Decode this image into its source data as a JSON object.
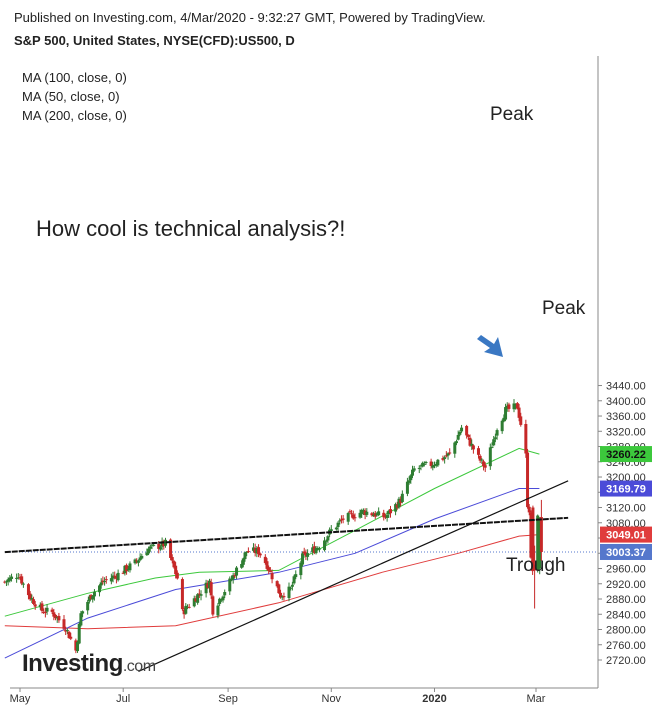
{
  "header": {
    "published": "Published on Investing.com, 4/Mar/2020 - 9:32:27 GMT, Powered by TradingView.",
    "symbol": "S&P 500, United States, NYSE(CFD):US500, D"
  },
  "legend": [
    "MA (100, close, 0)",
    "MA (50, close, 0)",
    "MA (200, close, 0)"
  ],
  "brand": {
    "name": "Investing",
    "suffix": ".com"
  },
  "colors": {
    "up": "#2e7d32",
    "down": "#c62828",
    "ma50": "#3cc83c",
    "ma100": "#4b4bd8",
    "ma200": "#e03c3c",
    "last_label": "#5577cc",
    "arrow": "#3a78c3"
  },
  "chart_data": {
    "type": "candlestick",
    "title": "S&P 500, United States, NYSE(CFD):US500, D",
    "x_ticks": [
      "May",
      "Jul",
      "Sep",
      "Nov",
      "2020",
      "Mar"
    ],
    "y_ticks": [
      2720,
      2760,
      2800,
      2840,
      2880,
      2920,
      2960,
      3000,
      3040,
      3080,
      3120,
      3160,
      3200,
      3240,
      3280,
      3320,
      3360,
      3400,
      3440
    ],
    "ylim": [
      2690,
      3475
    ],
    "grid": false,
    "price_labels": [
      {
        "value": 3260.22,
        "text": "3260.22",
        "series": "MA (50, close, 0)"
      },
      {
        "value": 3169.79,
        "text": "3169.79",
        "series": "MA (100, close, 0)"
      },
      {
        "value": 3049.01,
        "text": "3049.01",
        "series": "MA (200, close, 0)"
      },
      {
        "value": 3003.37,
        "text": "3003.37",
        "series": "last"
      }
    ],
    "annotations": [
      "How cool is technical analysis?!",
      "Peak",
      "Peak",
      "Trough"
    ],
    "close_path": [
      [
        "2019-04-22",
        2925
      ],
      [
        "2019-04-30",
        2945
      ],
      [
        "2019-05-07",
        2885
      ],
      [
        "2019-05-14",
        2850
      ],
      [
        "2019-05-20",
        2845
      ],
      [
        "2019-05-28",
        2805
      ],
      [
        "2019-06-03",
        2745
      ],
      [
        "2019-06-06",
        2840
      ],
      [
        "2019-06-12",
        2890
      ],
      [
        "2019-06-19",
        2925
      ],
      [
        "2019-06-28",
        2945
      ],
      [
        "2019-07-08",
        2975
      ],
      [
        "2019-07-15",
        3010
      ],
      [
        "2019-07-26",
        3025
      ],
      [
        "2019-08-02",
        2935
      ],
      [
        "2019-08-05",
        2845
      ],
      [
        "2019-08-12",
        2880
      ],
      [
        "2019-08-21",
        2925
      ],
      [
        "2019-08-23",
        2850
      ],
      [
        "2019-09-04",
        2940
      ],
      [
        "2019-09-12",
        3005
      ],
      [
        "2019-09-19",
        3005
      ],
      [
        "2019-09-24",
        2970
      ],
      [
        "2019-10-02",
        2890
      ],
      [
        "2019-10-08",
        2905
      ],
      [
        "2019-10-15",
        2990
      ],
      [
        "2019-10-25",
        3020
      ],
      [
        "2019-11-01",
        3060
      ],
      [
        "2019-11-08",
        3090
      ],
      [
        "2019-11-20",
        3110
      ],
      [
        "2019-12-03",
        3095
      ],
      [
        "2019-12-12",
        3140
      ],
      [
        "2019-12-20",
        3220
      ],
      [
        "2019-12-31",
        3235
      ],
      [
        "2020-01-10",
        3260
      ],
      [
        "2020-01-17",
        3330
      ],
      [
        "2020-01-27",
        3250
      ],
      [
        "2020-01-31",
        3225
      ],
      [
        "2020-02-07",
        3330
      ],
      [
        "2020-02-12",
        3375
      ],
      [
        "2020-02-19",
        3385
      ],
      [
        "2020-02-21",
        3340
      ],
      [
        "2020-02-24",
        3255
      ],
      [
        "2020-02-25",
        3130
      ],
      [
        "2020-02-26",
        3115
      ],
      [
        "2020-02-27",
        2980
      ],
      [
        "2020-02-28",
        2955
      ],
      [
        "2020-03-02",
        3090
      ],
      [
        "2020-03-03",
        3003.37
      ]
    ],
    "moving_averages": [
      {
        "name": "MA (200, close, 0)",
        "points": [
          [
            "2019-04-22",
            2810
          ],
          [
            "2019-06-10",
            2802
          ],
          [
            "2019-08-01",
            2810
          ],
          [
            "2019-10-01",
            2870
          ],
          [
            "2019-12-01",
            2950
          ],
          [
            "2020-01-15",
            3000
          ],
          [
            "2020-02-20",
            3045
          ],
          [
            "2020-03-03",
            3049.01
          ]
        ]
      },
      {
        "name": "MA (100, close, 0)",
        "points": [
          [
            "2019-04-22",
            2725
          ],
          [
            "2019-06-10",
            2830
          ],
          [
            "2019-08-01",
            2905
          ],
          [
            "2019-10-01",
            2950
          ],
          [
            "2019-11-15",
            3000
          ],
          [
            "2020-01-01",
            3090
          ],
          [
            "2020-02-20",
            3170
          ],
          [
            "2020-03-03",
            3169.79
          ]
        ]
      },
      {
        "name": "MA (50, close, 0)",
        "points": [
          [
            "2019-04-22",
            2835
          ],
          [
            "2019-06-10",
            2895
          ],
          [
            "2019-07-20",
            2935
          ],
          [
            "2019-08-15",
            2950
          ],
          [
            "2019-10-01",
            2955
          ],
          [
            "2019-11-15",
            3060
          ],
          [
            "2020-01-01",
            3170
          ],
          [
            "2020-02-20",
            3275
          ],
          [
            "2020-03-03",
            3260.22
          ]
        ]
      }
    ],
    "trendlines": [
      {
        "from": [
          "2019-04-22",
          3003
        ],
        "to": [
          "2020-03-20",
          3093
        ]
      },
      {
        "from": [
          "2019-07-10",
          2690
        ],
        "to": [
          "2020-03-20",
          3190
        ]
      }
    ]
  }
}
